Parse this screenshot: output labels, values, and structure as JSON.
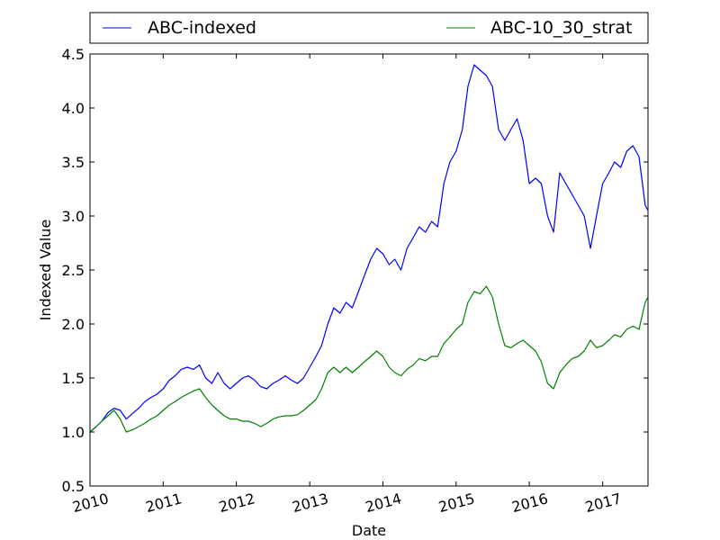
{
  "chart_data": {
    "type": "line",
    "title": "",
    "xlabel": "Date",
    "ylabel": "Indexed Value",
    "xlim": [
      "2010-01-01",
      "2017-08-15"
    ],
    "ylim": [
      0.5,
      4.5
    ],
    "x_ticks": [
      "2010",
      "2011",
      "2012",
      "2013",
      "2014",
      "2015",
      "2016",
      "2017"
    ],
    "y_ticks": [
      "0.5",
      "1.0",
      "1.5",
      "2.0",
      "2.5",
      "3.0",
      "3.5",
      "4.0",
      "4.5"
    ],
    "grid": false,
    "legend": {
      "placement": "top-outside",
      "columns": 2
    },
    "series": [
      {
        "name": "ABC-indexed",
        "color": "#0000ff",
        "points": [
          [
            "2010-01-01",
            1.0
          ],
          [
            "2010-02-01",
            1.05
          ],
          [
            "2010-03-01",
            1.1
          ],
          [
            "2010-04-01",
            1.18
          ],
          [
            "2010-05-01",
            1.22
          ],
          [
            "2010-06-01",
            1.2
          ],
          [
            "2010-07-01",
            1.12
          ],
          [
            "2010-08-01",
            1.17
          ],
          [
            "2010-09-01",
            1.22
          ],
          [
            "2010-10-01",
            1.28
          ],
          [
            "2010-11-01",
            1.32
          ],
          [
            "2010-12-01",
            1.35
          ],
          [
            "2011-01-01",
            1.4
          ],
          [
            "2011-02-01",
            1.48
          ],
          [
            "2011-03-01",
            1.52
          ],
          [
            "2011-04-01",
            1.58
          ],
          [
            "2011-05-01",
            1.6
          ],
          [
            "2011-06-01",
            1.58
          ],
          [
            "2011-07-01",
            1.62
          ],
          [
            "2011-08-01",
            1.5
          ],
          [
            "2011-09-01",
            1.45
          ],
          [
            "2011-10-01",
            1.55
          ],
          [
            "2011-11-01",
            1.45
          ],
          [
            "2011-12-01",
            1.4
          ],
          [
            "2012-01-01",
            1.45
          ],
          [
            "2012-02-01",
            1.5
          ],
          [
            "2012-03-01",
            1.52
          ],
          [
            "2012-04-01",
            1.48
          ],
          [
            "2012-05-01",
            1.42
          ],
          [
            "2012-06-01",
            1.4
          ],
          [
            "2012-07-01",
            1.45
          ],
          [
            "2012-08-01",
            1.48
          ],
          [
            "2012-09-01",
            1.52
          ],
          [
            "2012-10-01",
            1.48
          ],
          [
            "2012-11-01",
            1.45
          ],
          [
            "2012-12-01",
            1.5
          ],
          [
            "2013-01-01",
            1.6
          ],
          [
            "2013-02-01",
            1.7
          ],
          [
            "2013-03-01",
            1.8
          ],
          [
            "2013-04-01",
            2.0
          ],
          [
            "2013-05-01",
            2.15
          ],
          [
            "2013-06-01",
            2.1
          ],
          [
            "2013-07-01",
            2.2
          ],
          [
            "2013-08-01",
            2.15
          ],
          [
            "2013-09-01",
            2.3
          ],
          [
            "2013-10-01",
            2.45
          ],
          [
            "2013-11-01",
            2.6
          ],
          [
            "2013-12-01",
            2.7
          ],
          [
            "2014-01-01",
            2.65
          ],
          [
            "2014-02-01",
            2.55
          ],
          [
            "2014-03-01",
            2.6
          ],
          [
            "2014-04-01",
            2.5
          ],
          [
            "2014-05-01",
            2.7
          ],
          [
            "2014-06-01",
            2.8
          ],
          [
            "2014-07-01",
            2.9
          ],
          [
            "2014-08-01",
            2.85
          ],
          [
            "2014-09-01",
            2.95
          ],
          [
            "2014-10-01",
            2.9
          ],
          [
            "2014-11-01",
            3.3
          ],
          [
            "2014-12-01",
            3.5
          ],
          [
            "2015-01-01",
            3.6
          ],
          [
            "2015-02-01",
            3.8
          ],
          [
            "2015-03-01",
            4.2
          ],
          [
            "2015-04-01",
            4.4
          ],
          [
            "2015-05-01",
            4.35
          ],
          [
            "2015-06-01",
            4.3
          ],
          [
            "2015-07-01",
            4.2
          ],
          [
            "2015-08-01",
            3.8
          ],
          [
            "2015-09-01",
            3.7
          ],
          [
            "2015-10-01",
            3.8
          ],
          [
            "2015-11-01",
            3.9
          ],
          [
            "2015-12-01",
            3.7
          ],
          [
            "2016-01-01",
            3.3
          ],
          [
            "2016-02-01",
            3.35
          ],
          [
            "2016-03-01",
            3.3
          ],
          [
            "2016-04-01",
            3.0
          ],
          [
            "2016-05-01",
            2.85
          ],
          [
            "2016-06-01",
            3.4
          ],
          [
            "2016-07-01",
            3.3
          ],
          [
            "2016-08-01",
            3.2
          ],
          [
            "2016-09-01",
            3.1
          ],
          [
            "2016-10-01",
            3.0
          ],
          [
            "2016-11-01",
            2.7
          ],
          [
            "2016-12-01",
            3.0
          ],
          [
            "2017-01-01",
            3.3
          ],
          [
            "2017-02-01",
            3.4
          ],
          [
            "2017-03-01",
            3.5
          ],
          [
            "2017-04-01",
            3.45
          ],
          [
            "2017-05-01",
            3.6
          ],
          [
            "2017-06-01",
            3.65
          ],
          [
            "2017-07-01",
            3.55
          ],
          [
            "2017-08-01",
            3.1
          ],
          [
            "2017-08-15",
            3.05
          ]
        ]
      },
      {
        "name": "ABC-10_30_strat",
        "color": "#008000",
        "points": [
          [
            "2010-01-01",
            1.0
          ],
          [
            "2010-02-01",
            1.05
          ],
          [
            "2010-03-01",
            1.1
          ],
          [
            "2010-04-01",
            1.15
          ],
          [
            "2010-05-01",
            1.2
          ],
          [
            "2010-06-01",
            1.12
          ],
          [
            "2010-07-01",
            1.0
          ],
          [
            "2010-08-01",
            1.02
          ],
          [
            "2010-09-01",
            1.05
          ],
          [
            "2010-10-01",
            1.08
          ],
          [
            "2010-11-01",
            1.12
          ],
          [
            "2010-12-01",
            1.15
          ],
          [
            "2011-01-01",
            1.2
          ],
          [
            "2011-02-01",
            1.25
          ],
          [
            "2011-03-01",
            1.28
          ],
          [
            "2011-04-01",
            1.32
          ],
          [
            "2011-05-01",
            1.35
          ],
          [
            "2011-06-01",
            1.38
          ],
          [
            "2011-07-01",
            1.4
          ],
          [
            "2011-08-01",
            1.32
          ],
          [
            "2011-09-01",
            1.25
          ],
          [
            "2011-10-01",
            1.2
          ],
          [
            "2011-11-01",
            1.15
          ],
          [
            "2011-12-01",
            1.12
          ],
          [
            "2012-01-01",
            1.12
          ],
          [
            "2012-02-01",
            1.1
          ],
          [
            "2012-03-01",
            1.1
          ],
          [
            "2012-04-01",
            1.08
          ],
          [
            "2012-05-01",
            1.05
          ],
          [
            "2012-06-01",
            1.08
          ],
          [
            "2012-07-01",
            1.12
          ],
          [
            "2012-08-01",
            1.14
          ],
          [
            "2012-09-01",
            1.15
          ],
          [
            "2012-10-01",
            1.15
          ],
          [
            "2012-11-01",
            1.16
          ],
          [
            "2012-12-01",
            1.2
          ],
          [
            "2013-01-01",
            1.25
          ],
          [
            "2013-02-01",
            1.3
          ],
          [
            "2013-03-01",
            1.4
          ],
          [
            "2013-04-01",
            1.55
          ],
          [
            "2013-05-01",
            1.6
          ],
          [
            "2013-06-01",
            1.55
          ],
          [
            "2013-07-01",
            1.6
          ],
          [
            "2013-08-01",
            1.55
          ],
          [
            "2013-09-01",
            1.6
          ],
          [
            "2013-10-01",
            1.65
          ],
          [
            "2013-11-01",
            1.7
          ],
          [
            "2013-12-01",
            1.75
          ],
          [
            "2014-01-01",
            1.7
          ],
          [
            "2014-02-01",
            1.6
          ],
          [
            "2014-03-01",
            1.55
          ],
          [
            "2014-04-01",
            1.52
          ],
          [
            "2014-05-01",
            1.58
          ],
          [
            "2014-06-01",
            1.62
          ],
          [
            "2014-07-01",
            1.68
          ],
          [
            "2014-08-01",
            1.66
          ],
          [
            "2014-09-01",
            1.7
          ],
          [
            "2014-10-01",
            1.7
          ],
          [
            "2014-11-01",
            1.82
          ],
          [
            "2014-12-01",
            1.88
          ],
          [
            "2015-01-01",
            1.95
          ],
          [
            "2015-02-01",
            2.0
          ],
          [
            "2015-03-01",
            2.2
          ],
          [
            "2015-04-01",
            2.3
          ],
          [
            "2015-05-01",
            2.28
          ],
          [
            "2015-06-01",
            2.35
          ],
          [
            "2015-07-01",
            2.25
          ],
          [
            "2015-08-01",
            2.0
          ],
          [
            "2015-09-01",
            1.8
          ],
          [
            "2015-10-01",
            1.78
          ],
          [
            "2015-11-01",
            1.82
          ],
          [
            "2015-12-01",
            1.85
          ],
          [
            "2016-01-01",
            1.8
          ],
          [
            "2016-02-01",
            1.75
          ],
          [
            "2016-03-01",
            1.65
          ],
          [
            "2016-04-01",
            1.45
          ],
          [
            "2016-05-01",
            1.4
          ],
          [
            "2016-06-01",
            1.55
          ],
          [
            "2016-07-01",
            1.62
          ],
          [
            "2016-08-01",
            1.68
          ],
          [
            "2016-09-01",
            1.7
          ],
          [
            "2016-10-01",
            1.75
          ],
          [
            "2016-11-01",
            1.85
          ],
          [
            "2016-12-01",
            1.78
          ],
          [
            "2017-01-01",
            1.8
          ],
          [
            "2017-02-01",
            1.85
          ],
          [
            "2017-03-01",
            1.9
          ],
          [
            "2017-04-01",
            1.88
          ],
          [
            "2017-05-01",
            1.95
          ],
          [
            "2017-06-01",
            1.98
          ],
          [
            "2017-07-01",
            1.95
          ],
          [
            "2017-08-01",
            2.2
          ],
          [
            "2017-08-15",
            2.25
          ]
        ]
      }
    ]
  }
}
